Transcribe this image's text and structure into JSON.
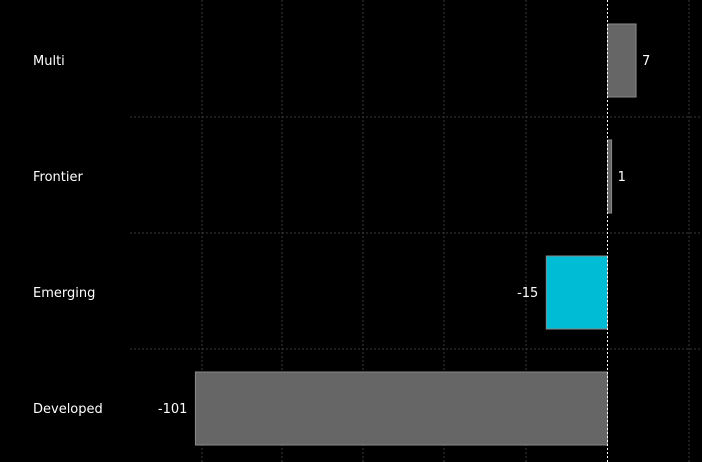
{
  "chart_data": {
    "type": "bar",
    "orientation": "horizontal",
    "categories": [
      "Multi",
      "Frontier",
      "Emerging",
      "Developed"
    ],
    "values": [
      7,
      1,
      -15,
      -101
    ],
    "highlight": {
      "category": "Emerging",
      "color": "#00BCD4"
    },
    "bar_color": "#666666",
    "background": "#000000",
    "grid": true,
    "xlim": [
      -103,
      22
    ],
    "title": "",
    "xlabel": "",
    "ylabel": ""
  }
}
